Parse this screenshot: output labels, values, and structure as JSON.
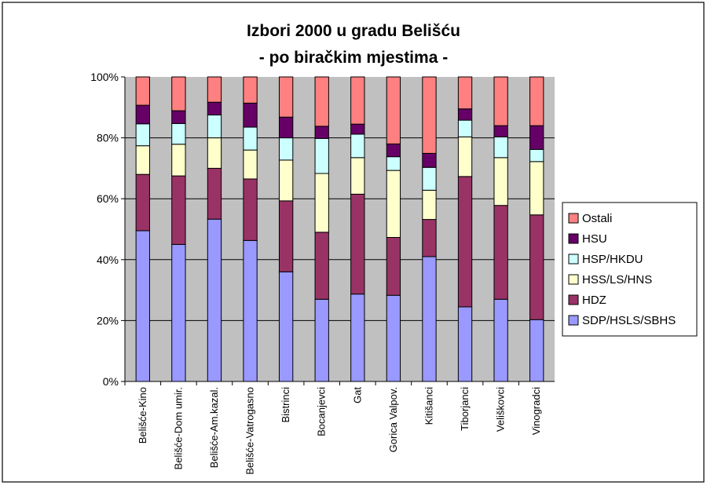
{
  "chart_data": {
    "type": "bar",
    "stacked": true,
    "normalized_percent": true,
    "title": "Izbori 2000 u gradu Belišću",
    "subtitle": "- po biračkim mjestima -",
    "categories": [
      "Belišće-Kino",
      "Belišće-Dom umir.",
      "Belišće-Am.kazal.",
      "Belišće-Vatrogasno",
      "Bistrinci",
      "Bocanjevci",
      "Gat",
      "Gorica Valpov.",
      "Kitišanci",
      "Tiborjanci",
      "Veliškovci",
      "Vinogradci"
    ],
    "y_ticks": [
      "0%",
      "20%",
      "40%",
      "60%",
      "80%",
      "100%"
    ],
    "ylim": [
      0,
      100
    ],
    "legend_position": "right",
    "grid": true,
    "series": [
      {
        "name": "SDP/HSLS/SBHS",
        "color": "#9999ff",
        "values": [
          49.5,
          45,
          53.3,
          46.3,
          36,
          27,
          28.7,
          28.3,
          41,
          24.5,
          27,
          20.3
        ]
      },
      {
        "name": "HDZ",
        "color": "#993366",
        "values": [
          18.5,
          22.5,
          16.7,
          20.2,
          23.3,
          22,
          32.8,
          19,
          12.2,
          42.8,
          30.8,
          34.4
        ]
      },
      {
        "name": "HSS/LS/HNS",
        "color": "#ffffcc",
        "values": [
          9.4,
          10.4,
          10,
          9.5,
          13.4,
          19.3,
          12,
          22,
          9.6,
          13,
          15.7,
          17.5
        ]
      },
      {
        "name": "HSP/HKDU",
        "color": "#ccffff",
        "values": [
          7.2,
          6.8,
          7.5,
          7.5,
          7.3,
          11.5,
          7.7,
          4.5,
          7.5,
          5.5,
          6.8,
          4
        ]
      },
      {
        "name": "HSU",
        "color": "#660066",
        "values": [
          6.1,
          4.2,
          4.2,
          7.9,
          6.8,
          4,
          3.3,
          4.2,
          4.6,
          3.7,
          3.7,
          7.8
        ]
      },
      {
        "name": "Ostali",
        "color": "#ff8080",
        "values": [
          9.3,
          11.1,
          8.3,
          8.6,
          13.2,
          16.2,
          15.5,
          22,
          25.1,
          10.5,
          16,
          16
        ]
      }
    ],
    "plot_background": "#c0c0c0"
  }
}
